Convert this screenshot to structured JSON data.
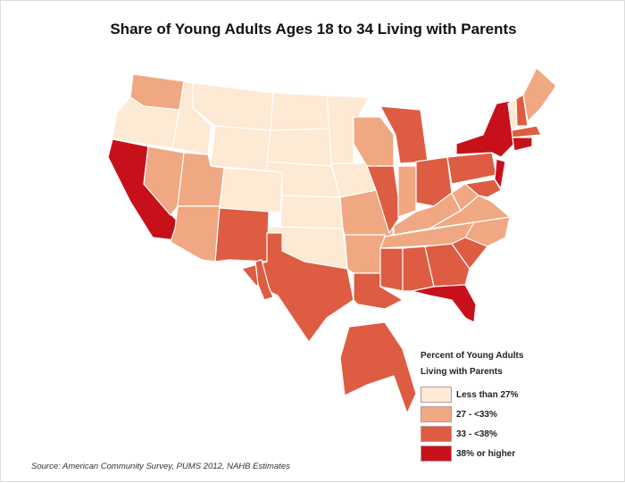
{
  "title": "Share of Young Adults Ages 18 to 34 Living with Parents",
  "source": "Source: American Community Survey, PUMS 2012, NAHB Estimates",
  "legend": {
    "title_line1": "Percent of Young Adults",
    "title_line2": "Living with Parents",
    "items": [
      {
        "label": "Less than 27%",
        "color": "#fde9d4"
      },
      {
        "label": "27 - <33%",
        "color": "#f0a882"
      },
      {
        "label": "33 - <38%",
        "color": "#dd5c42"
      },
      {
        "label": "38% or higher",
        "color": "#c8101a"
      }
    ]
  },
  "states": {
    "WA": 1,
    "OR": 0,
    "CA": 3,
    "NV": 1,
    "ID": 0,
    "MT": 0,
    "WY": 0,
    "UT": 1,
    "AZ": 1,
    "CO": 0,
    "NM": 2,
    "ND": 0,
    "SD": 0,
    "NE": 0,
    "KS": 0,
    "OK": 0,
    "TX": 2,
    "MN": 0,
    "IA": 0,
    "MO": 1,
    "AR": 1,
    "LA": 2,
    "WI": 1,
    "IL": 2,
    "MI": 2,
    "IN": 1,
    "OH": 2,
    "KY": 1,
    "TN": 1,
    "MS": 2,
    "AL": 2,
    "GA": 2,
    "FL": 3,
    "SC": 2,
    "NC": 1,
    "VA": 1,
    "WV": 1,
    "PA": 2,
    "NY": 3,
    "NJ": 3,
    "MD": 2,
    "VT": 0,
    "NH": 2,
    "ME": 1,
    "MA": 2,
    "CT": 3,
    "AK": 2,
    "HI": 2
  }
}
